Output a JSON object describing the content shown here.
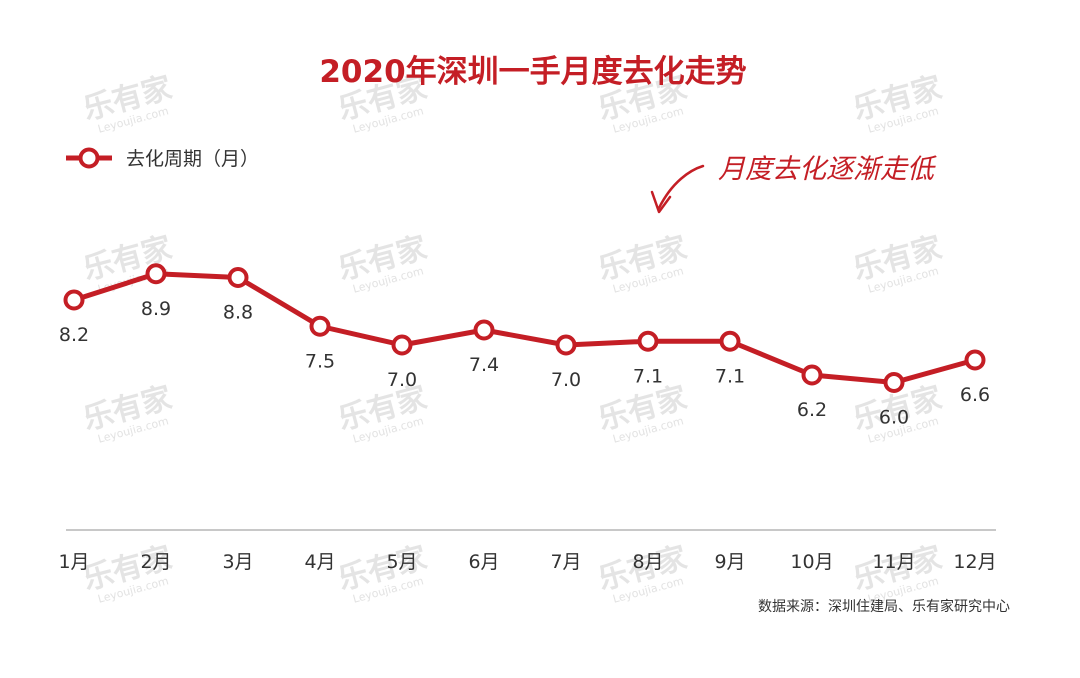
{
  "chart_data": {
    "type": "line",
    "title": "2020年深圳一手月度去化走势",
    "categories": [
      "1月",
      "2月",
      "3月",
      "4月",
      "5月",
      "6月",
      "7月",
      "8月",
      "9月",
      "10月",
      "11月",
      "12月"
    ],
    "series": [
      {
        "name": "去化周期（月）",
        "values": [
          8.2,
          8.9,
          8.8,
          7.5,
          7.0,
          7.4,
          7.0,
          7.1,
          7.1,
          6.2,
          6.0,
          6.6
        ]
      }
    ],
    "data_labels": [
      "8.2",
      "8.9",
      "8.8",
      "7.5",
      "7.0",
      "7.4",
      "7.0",
      "7.1",
      "7.1",
      "6.2",
      "6.0",
      "6.6"
    ],
    "annotation": "月度去化逐渐走低",
    "legend_position": "top-left",
    "grid": false,
    "line_color": "#c41e25"
  },
  "watermark": {
    "text": "乐有家",
    "sub": "Leyoujia.com"
  },
  "source_note": "数据来源：深圳住建局、乐有家研究中心"
}
